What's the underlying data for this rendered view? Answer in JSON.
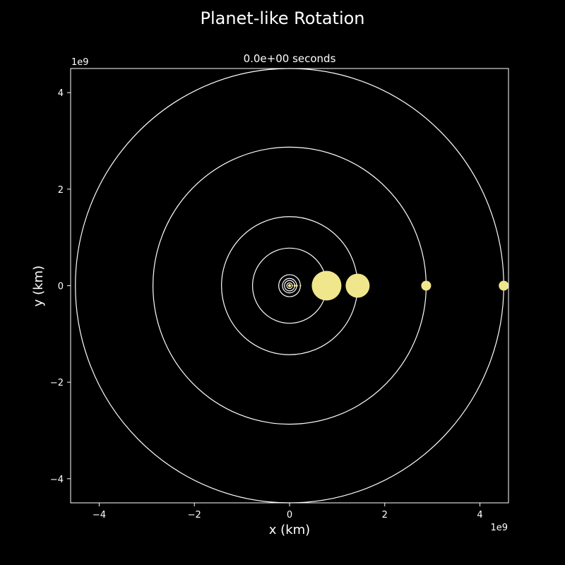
{
  "chart_data": {
    "type": "scatter",
    "title": "Planet-like Rotation",
    "subtitle": "0.0e+00 seconds",
    "xlabel": "x (km)",
    "ylabel": "y (km)",
    "x_offset_label": "1e9",
    "y_offset_label": "1e9",
    "xlim": [
      -4.6,
      4.6
    ],
    "ylim": [
      -4.5,
      4.5
    ],
    "xticks": [
      -4,
      -2,
      0,
      2,
      4
    ],
    "yticks": [
      -4,
      -2,
      0,
      2,
      4
    ],
    "xtick_labels": [
      "−4",
      "−2",
      "0",
      "2",
      "4"
    ],
    "ytick_labels": [
      "−4",
      "−2",
      "0",
      "2",
      "4"
    ],
    "grid": false,
    "background": "#000000",
    "foreground": "#ffffff",
    "body_color": "#f0e68c",
    "orbit_color": "#ffffff",
    "orbits": [
      0.058,
      0.108,
      0.15,
      0.228,
      0.778,
      1.43,
      2.87,
      4.5
    ],
    "bodies": [
      {
        "x": 0.058,
        "y": 0,
        "size": 1
      },
      {
        "x": 0.108,
        "y": 0,
        "size": 1.5
      },
      {
        "x": 0.15,
        "y": 0,
        "size": 1.5
      },
      {
        "x": 0.228,
        "y": 0,
        "size": 1.2
      },
      {
        "x": 0.778,
        "y": 0,
        "size": 21
      },
      {
        "x": 1.43,
        "y": 0,
        "size": 17
      },
      {
        "x": 2.87,
        "y": 0,
        "size": 7
      },
      {
        "x": 4.5,
        "y": 0,
        "size": 7
      }
    ]
  }
}
